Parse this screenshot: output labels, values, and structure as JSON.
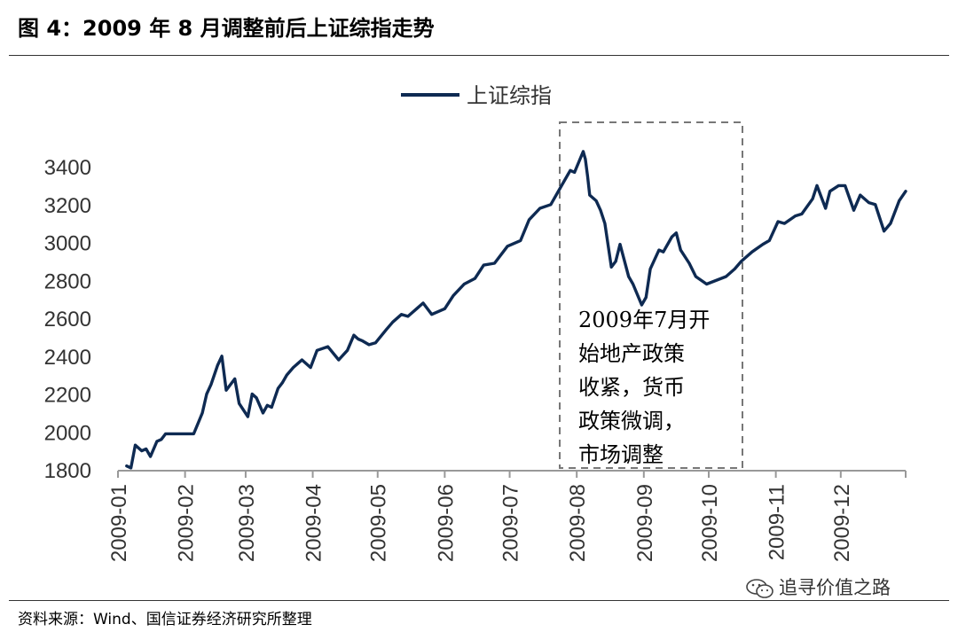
{
  "figure": {
    "title": "图 4：2009 年 8 月调整前后上证综指走势",
    "source": "资料来源：Wind、国信证券经济研究所整理",
    "watermark": "追寻价值之路",
    "watermark_icon": "wechat-icon"
  },
  "chart_data": {
    "type": "line",
    "title": "",
    "xlabel": "",
    "ylabel": "",
    "ylim": [
      1800,
      3400
    ],
    "yticks": [
      "1800",
      "2000",
      "2200",
      "2400",
      "2600",
      "2800",
      "3000",
      "3200",
      "3400"
    ],
    "xticks": [
      "2009-01",
      "2009-02",
      "2009-03",
      "2009-04",
      "2009-05",
      "2009-06",
      "2009-07",
      "2009-08",
      "2009-09",
      "2009-10",
      "2009-11",
      "2009-12"
    ],
    "grid": false,
    "legend": "top-center",
    "series": [
      {
        "name": "上证综指",
        "color": "#0e2a52",
        "x": [
          "2009-01-05",
          "2009-01-07",
          "2009-01-09",
          "2009-01-12",
          "2009-01-14",
          "2009-01-16",
          "2009-01-19",
          "2009-01-21",
          "2009-01-23",
          "2009-02-05",
          "2009-02-09",
          "2009-02-11",
          "2009-02-13",
          "2009-02-16",
          "2009-02-18",
          "2009-02-20",
          "2009-02-24",
          "2009-02-26",
          "2009-03-02",
          "2009-03-04",
          "2009-03-06",
          "2009-03-09",
          "2009-03-11",
          "2009-03-13",
          "2009-03-16",
          "2009-03-18",
          "2009-03-20",
          "2009-03-23",
          "2009-03-25",
          "2009-03-27",
          "2009-03-31",
          "2009-04-03",
          "2009-04-08",
          "2009-04-13",
          "2009-04-17",
          "2009-04-20",
          "2009-04-22",
          "2009-04-24",
          "2009-04-27",
          "2009-04-30",
          "2009-05-05",
          "2009-05-08",
          "2009-05-12",
          "2009-05-15",
          "2009-05-19",
          "2009-05-22",
          "2009-05-26",
          "2009-06-01",
          "2009-06-05",
          "2009-06-10",
          "2009-06-15",
          "2009-06-19",
          "2009-06-24",
          "2009-06-30",
          "2009-07-06",
          "2009-07-10",
          "2009-07-15",
          "2009-07-20",
          "2009-07-24",
          "2009-07-28",
          "2009-07-29",
          "2009-07-31",
          "2009-08-04",
          "2009-08-05",
          "2009-08-06",
          "2009-08-07",
          "2009-08-10",
          "2009-08-12",
          "2009-08-14",
          "2009-08-17",
          "2009-08-19",
          "2009-08-21",
          "2009-08-25",
          "2009-08-27",
          "2009-08-31",
          "2009-09-02",
          "2009-09-04",
          "2009-09-08",
          "2009-09-10",
          "2009-09-14",
          "2009-09-16",
          "2009-09-18",
          "2009-09-22",
          "2009-09-25",
          "2009-09-30",
          "2009-10-09",
          "2009-10-13",
          "2009-10-16",
          "2009-10-21",
          "2009-10-26",
          "2009-10-29",
          "2009-11-02",
          "2009-11-05",
          "2009-11-10",
          "2009-11-13",
          "2009-11-18",
          "2009-11-20",
          "2009-11-24",
          "2009-11-26",
          "2009-11-30",
          "2009-12-03",
          "2009-12-07",
          "2009-12-10",
          "2009-12-14",
          "2009-12-17",
          "2009-12-21",
          "2009-12-24",
          "2009-12-28",
          "2009-12-31"
        ],
        "values": [
          1820,
          1810,
          1930,
          1900,
          1910,
          1870,
          1950,
          1960,
          1990,
          1990,
          2100,
          2200,
          2250,
          2350,
          2400,
          2220,
          2280,
          2150,
          2080,
          2200,
          2180,
          2100,
          2140,
          2130,
          2230,
          2260,
          2300,
          2340,
          2360,
          2380,
          2340,
          2430,
          2450,
          2380,
          2430,
          2510,
          2490,
          2480,
          2460,
          2470,
          2540,
          2580,
          2620,
          2610,
          2650,
          2680,
          2620,
          2650,
          2720,
          2780,
          2810,
          2880,
          2890,
          2980,
          3010,
          3120,
          3180,
          3200,
          3280,
          3360,
          3380,
          3370,
          3480,
          3440,
          3350,
          3250,
          3220,
          3170,
          3100,
          2870,
          2900,
          2990,
          2820,
          2780,
          2670,
          2710,
          2860,
          2960,
          2950,
          3030,
          3050,
          2960,
          2890,
          2820,
          2780,
          2820,
          2860,
          2900,
          2950,
          2990,
          3010,
          3110,
          3100,
          3140,
          3150,
          3230,
          3300,
          3180,
          3270,
          3300,
          3300,
          3170,
          3250,
          3210,
          3200,
          3060,
          3100,
          3220,
          3270
        ]
      }
    ],
    "annotations": [
      {
        "type": "dashed-box",
        "x_range": [
          "2009-07-29",
          "2009-10-29"
        ],
        "text_lines": [
          "2009年7月开",
          "始地产政策",
          "收紧，货币",
          "政策微调，",
          "市场调整"
        ]
      }
    ]
  }
}
